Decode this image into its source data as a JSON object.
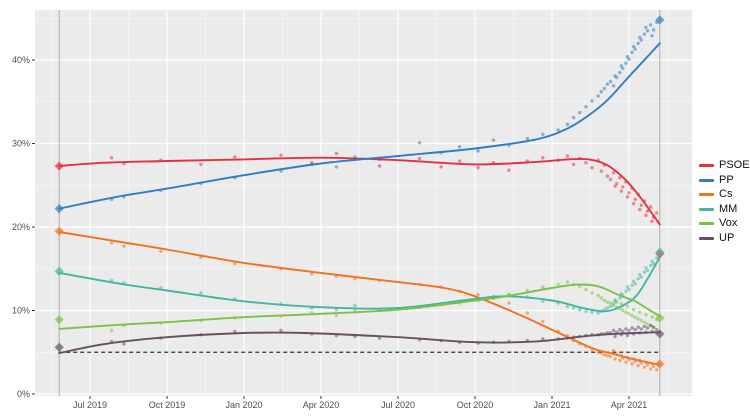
{
  "chart_data": {
    "type": "scatter",
    "title": "",
    "xlabel": "",
    "ylabel": "",
    "background": "#ebebeb",
    "grid": "on",
    "ylim": [
      -0.3,
      46.2
    ],
    "xlim_decimal_years": [
      2019.32,
      2021.455
    ],
    "x_ticks": [
      {
        "t": 2019.5,
        "label": "Jul 2019"
      },
      {
        "t": 2019.75,
        "label": "Oct 2019"
      },
      {
        "t": 2020.0,
        "label": "Jan 2020"
      },
      {
        "t": 2020.25,
        "label": "Apr 2020"
      },
      {
        "t": 2020.5,
        "label": "Jul 2020"
      },
      {
        "t": 2020.75,
        "label": "Oct 2020"
      },
      {
        "t": 2021.0,
        "label": "Jan 2021"
      },
      {
        "t": 2021.25,
        "label": "Apr 2021"
      }
    ],
    "y_ticks": [
      {
        "v": 0,
        "label": "0%"
      },
      {
        "v": 10,
        "label": "10%"
      },
      {
        "v": 20,
        "label": "20%"
      },
      {
        "v": 30,
        "label": "30%"
      },
      {
        "v": 40,
        "label": "40%"
      }
    ],
    "threshold_line": {
      "value": 5,
      "style": "dashed",
      "color": "#333333"
    },
    "election_lines": [
      {
        "t": 2019.4
      },
      {
        "t": 2021.35
      }
    ],
    "legend_position": "right",
    "series": [
      {
        "name": "PSOE",
        "color": "#e4313f",
        "trend": [
          [
            2019.4,
            27.3
          ],
          [
            2019.55,
            27.7
          ],
          [
            2019.75,
            27.9
          ],
          [
            2020.0,
            28.1
          ],
          [
            2020.25,
            28.3
          ],
          [
            2020.5,
            28.0
          ],
          [
            2020.75,
            27.5
          ],
          [
            2020.95,
            27.8
          ],
          [
            2021.05,
            28.1
          ],
          [
            2021.12,
            28.1
          ],
          [
            2021.18,
            27.4
          ],
          [
            2021.24,
            25.6
          ],
          [
            2021.29,
            23.4
          ],
          [
            2021.35,
            20.3
          ]
        ]
      },
      {
        "name": "PP",
        "color": "#2e7ec5",
        "trend": [
          [
            2019.4,
            22.2
          ],
          [
            2019.6,
            23.7
          ],
          [
            2019.75,
            24.6
          ],
          [
            2020.0,
            26.2
          ],
          [
            2020.25,
            27.6
          ],
          [
            2020.5,
            28.5
          ],
          [
            2020.75,
            29.4
          ],
          [
            2020.95,
            30.5
          ],
          [
            2021.05,
            31.8
          ],
          [
            2021.12,
            33.4
          ],
          [
            2021.18,
            35.2
          ],
          [
            2021.24,
            37.6
          ],
          [
            2021.29,
            39.6
          ],
          [
            2021.35,
            42.0
          ]
        ]
      },
      {
        "name": "Cs",
        "color": "#f3721c",
        "trend": [
          [
            2019.4,
            19.4
          ],
          [
            2019.6,
            18.2
          ],
          [
            2019.75,
            17.3
          ],
          [
            2020.0,
            15.7
          ],
          [
            2020.25,
            14.5
          ],
          [
            2020.5,
            13.4
          ],
          [
            2020.65,
            12.7
          ],
          [
            2020.75,
            11.7
          ],
          [
            2020.9,
            9.4
          ],
          [
            2021.0,
            7.7
          ],
          [
            2021.13,
            5.5
          ],
          [
            2021.19,
            4.9
          ],
          [
            2021.25,
            4.3
          ],
          [
            2021.35,
            3.5
          ]
        ]
      },
      {
        "name": "MM",
        "color": "#41b6a2",
        "trend": [
          [
            2019.4,
            14.5
          ],
          [
            2019.6,
            13.2
          ],
          [
            2019.75,
            12.4
          ],
          [
            2020.0,
            11.1
          ],
          [
            2020.25,
            10.4
          ],
          [
            2020.5,
            10.3
          ],
          [
            2020.75,
            11.4
          ],
          [
            2020.85,
            11.7
          ],
          [
            2021.0,
            11.2
          ],
          [
            2021.1,
            10.3
          ],
          [
            2021.17,
            9.9
          ],
          [
            2021.22,
            10.4
          ],
          [
            2021.27,
            11.6
          ],
          [
            2021.31,
            13.8
          ],
          [
            2021.35,
            16.4
          ]
        ]
      },
      {
        "name": "Vox",
        "color": "#7cc242",
        "trend": [
          [
            2019.4,
            7.8
          ],
          [
            2019.6,
            8.3
          ],
          [
            2019.75,
            8.6
          ],
          [
            2020.0,
            9.2
          ],
          [
            2020.25,
            9.6
          ],
          [
            2020.5,
            10.1
          ],
          [
            2020.75,
            11.2
          ],
          [
            2020.85,
            11.7
          ],
          [
            2021.0,
            12.7
          ],
          [
            2021.08,
            13.1
          ],
          [
            2021.15,
            12.9
          ],
          [
            2021.22,
            11.8
          ],
          [
            2021.27,
            11.1
          ],
          [
            2021.31,
            10.2
          ],
          [
            2021.35,
            9.3
          ]
        ]
      },
      {
        "name": "UP",
        "color": "#664f62",
        "trend": [
          [
            2019.4,
            4.9
          ],
          [
            2019.55,
            6.0
          ],
          [
            2019.75,
            6.8
          ],
          [
            2020.0,
            7.3
          ],
          [
            2020.2,
            7.3
          ],
          [
            2020.5,
            6.8
          ],
          [
            2020.75,
            6.2
          ],
          [
            2020.95,
            6.3
          ],
          [
            2021.1,
            6.9
          ],
          [
            2021.2,
            7.2
          ],
          [
            2021.35,
            7.4
          ]
        ]
      }
    ],
    "election_results": [
      {
        "t": 2019.4,
        "results": {
          "PSOE": 27.3,
          "PP": 22.2,
          "Cs": 19.5,
          "MM": 14.7,
          "Vox": 8.9,
          "UP": 5.6
        }
      },
      {
        "t": 2021.35,
        "results": {
          "PSOE": 16.8,
          "PP": 44.8,
          "Cs": 3.6,
          "MM": 17.0,
          "Vox": 9.1,
          "UP": 7.2
        }
      }
    ],
    "poll_parties": [
      "PSOE",
      "PP",
      "Cs",
      "MM",
      "Vox",
      "UP"
    ],
    "polls": [
      [
        2019.57,
        28.3,
        23.3,
        18.1,
        13.6,
        7.6,
        6.3
      ],
      [
        2019.61,
        27.6,
        23.6,
        17.7,
        13.3,
        8.2,
        6.0
      ],
      [
        2019.73,
        28.0,
        24.4,
        17.1,
        12.7,
        8.5,
        6.7
      ],
      [
        2019.86,
        27.5,
        25.2,
        16.4,
        12.1,
        8.8,
        7.1
      ],
      [
        2019.97,
        28.4,
        25.9,
        15.6,
        11.4,
        9.1,
        7.5
      ],
      [
        2020.12,
        28.6,
        26.7,
        15.0,
        10.8,
        9.3,
        7.6
      ],
      [
        2020.22,
        27.7,
        27.5,
        14.4,
        10.3,
        9.7,
        7.2
      ],
      [
        2020.3,
        28.8,
        27.2,
        14.1,
        10.1,
        9.4,
        7.0
      ],
      [
        2020.36,
        28.1,
        28.4,
        13.8,
        10.6,
        10.0,
        6.9
      ],
      [
        2020.44,
        27.3,
        28.1,
        13.6,
        10.0,
        10.1,
        6.7
      ],
      [
        2020.57,
        28.2,
        30.1,
        13.1,
        10.4,
        10.4,
        6.5
      ],
      [
        2020.64,
        27.2,
        28.9,
        12.8,
        10.8,
        10.7,
        6.4
      ],
      [
        2020.7,
        27.9,
        29.6,
        12.3,
        11.1,
        10.9,
        6.2
      ],
      [
        2020.76,
        27.1,
        29.1,
        11.9,
        11.4,
        11.2,
        6.1
      ],
      [
        2020.81,
        27.7,
        30.4,
        11.5,
        11.7,
        11.5,
        6.2
      ],
      [
        2020.86,
        26.8,
        29.8,
        10.9,
        11.9,
        11.9,
        6.3
      ],
      [
        2020.92,
        27.9,
        30.6,
        9.7,
        11.6,
        12.4,
        6.4
      ],
      [
        2020.97,
        28.3,
        31.1,
        8.7,
        11.1,
        12.8,
        6.6
      ],
      [
        2021.02,
        28.0,
        31.6,
        7.5,
        10.9,
        13.1,
        6.6
      ],
      [
        2021.05,
        28.5,
        32.3,
        7.0,
        10.5,
        13.4,
        6.7
      ],
      [
        2021.07,
        27.5,
        33.1,
        6.4,
        10.3,
        13.1,
        6.8
      ],
      [
        2021.09,
        28.2,
        33.7,
        6.0,
        10.1,
        12.9,
        6.9
      ],
      [
        2021.11,
        27.7,
        34.4,
        5.7,
        9.9,
        12.5,
        7.0
      ],
      [
        2021.13,
        27.1,
        35.1,
        5.3,
        9.8,
        12.1,
        7.1
      ],
      [
        2021.15,
        28.0,
        35.7,
        5.0,
        9.7,
        11.8,
        7.1
      ],
      [
        2021.16,
        26.7,
        36.2,
        4.9,
        9.9,
        11.5,
        7.2
      ],
      [
        2021.17,
        27.4,
        36.6,
        4.7,
        10.1,
        11.2,
        7.2
      ],
      [
        2021.18,
        26.1,
        37.1,
        4.6,
        10.3,
        11.0,
        7.3
      ],
      [
        2021.19,
        25.7,
        37.4,
        4.5,
        10.5,
        10.9,
        7.3
      ],
      [
        2021.2,
        26.5,
        36.9,
        5.2,
        10.8,
        10.6,
        7.6
      ],
      [
        2021.205,
        24.9,
        38.1,
        4.2,
        11.2,
        11.2,
        6.9
      ],
      [
        2021.21,
        25.2,
        37.9,
        4.8,
        11.0,
        10.4,
        7.4
      ],
      [
        2021.22,
        25.9,
        38.5,
        4.0,
        11.5,
        10.2,
        7.7
      ],
      [
        2021.225,
        24.3,
        39.3,
        4.6,
        12.0,
        10.8,
        7.1
      ],
      [
        2021.23,
        24.8,
        39.0,
        4.3,
        11.8,
        10.0,
        7.5
      ],
      [
        2021.24,
        25.4,
        39.6,
        3.8,
        12.3,
        9.8,
        7.8
      ],
      [
        2021.245,
        23.6,
        40.4,
        4.4,
        12.8,
        10.5,
        7.0
      ],
      [
        2021.25,
        24.1,
        40.1,
        4.1,
        12.5,
        9.6,
        7.6
      ],
      [
        2021.26,
        24.6,
        40.9,
        3.6,
        13.0,
        9.4,
        7.9
      ],
      [
        2021.265,
        22.8,
        41.6,
        4.2,
        13.5,
        10.1,
        7.2
      ],
      [
        2021.27,
        23.3,
        41.3,
        3.9,
        13.2,
        9.2,
        7.7
      ],
      [
        2021.28,
        23.9,
        42.0,
        3.4,
        13.8,
        9.0,
        8.0
      ],
      [
        2021.285,
        22.1,
        42.7,
        4.0,
        14.3,
        9.8,
        7.3
      ],
      [
        2021.29,
        22.6,
        42.4,
        3.7,
        14.0,
        8.8,
        7.8
      ],
      [
        2021.3,
        23.1,
        43.1,
        3.2,
        14.6,
        8.6,
        8.1
      ],
      [
        2021.305,
        21.4,
        43.9,
        3.8,
        15.1,
        9.5,
        7.4
      ],
      [
        2021.31,
        21.9,
        43.5,
        3.5,
        14.8,
        8.4,
        7.9
      ],
      [
        2021.32,
        22.4,
        44.2,
        3.0,
        15.4,
        8.2,
        8.2
      ],
      [
        2021.325,
        20.7,
        42.9,
        3.6,
        15.9,
        9.2,
        7.5
      ],
      [
        2021.33,
        21.2,
        43.6,
        3.3,
        15.6,
        8.0,
        8.0
      ],
      [
        2021.34,
        21.7,
        44.5,
        2.9,
        16.3,
        8.9,
        7.7
      ]
    ]
  }
}
